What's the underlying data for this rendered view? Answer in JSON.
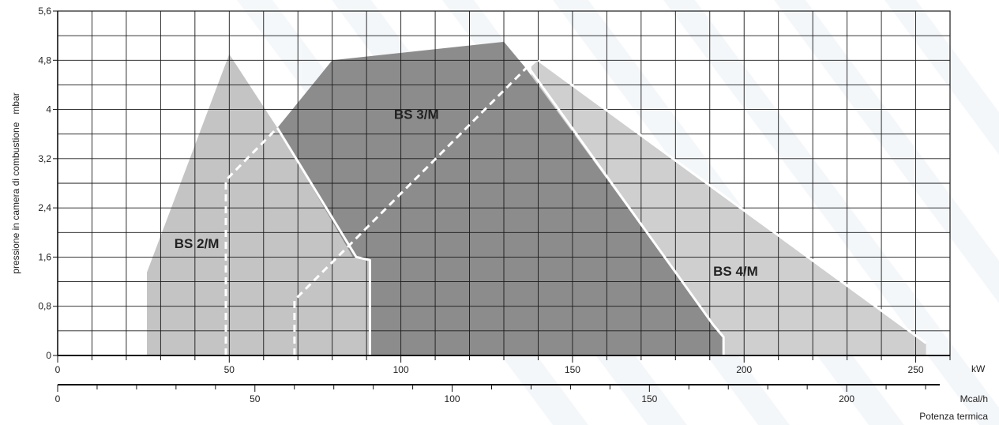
{
  "chart_data": {
    "type": "area",
    "ylabel": "pressione in camera di combustione   mbar",
    "xlabel": "Potenza termica",
    "x_unit": "kW",
    "x2_unit": "Mcal/h",
    "xlim": [
      0,
      260
    ],
    "ylim": [
      0,
      5.6
    ],
    "x2lim": [
      0,
      223.6
    ],
    "yticks": [
      "0",
      "0,8",
      "1,6",
      "2,4",
      "3,2",
      "4",
      "4,8",
      "5,6"
    ],
    "y_tick_values": [
      0,
      0.8,
      1.6,
      2.4,
      3.2,
      4.0,
      4.8,
      5.6
    ],
    "xticks": [
      "0",
      "50",
      "100",
      "150",
      "200",
      "250"
    ],
    "x_tick_values": [
      0,
      50,
      100,
      150,
      200,
      250
    ],
    "x2ticks": [
      "0",
      "50",
      "100",
      "150",
      "200"
    ],
    "x2_tick_values": [
      0,
      50,
      100,
      150,
      200
    ],
    "grid": true,
    "series": [
      {
        "name": "BS 2/M",
        "color": "#c4c4c4",
        "polygon": [
          [
            26,
            0
          ],
          [
            26,
            1.35
          ],
          [
            50,
            4.9
          ],
          [
            64,
            3.7
          ],
          [
            86,
            1.6
          ],
          [
            91,
            1.55
          ],
          [
            91,
            0
          ]
        ]
      },
      {
        "name": "BS 4/M",
        "color": "#cfcfcf",
        "polygon": [
          [
            138,
            0
          ],
          [
            138,
            4.7
          ],
          [
            140,
            4.8
          ],
          [
            253,
            0.2
          ],
          [
            253,
            0
          ]
        ]
      },
      {
        "name": "BS 3/M",
        "color": "#8c8c8c",
        "polygon": [
          [
            91,
            0
          ],
          [
            91,
            1.55
          ],
          [
            86,
            1.6
          ],
          [
            64,
            3.7
          ],
          [
            80,
            4.8
          ],
          [
            130,
            5.1
          ],
          [
            136,
            4.7
          ],
          [
            191,
            0.5
          ],
          [
            194,
            0.3
          ],
          [
            194,
            0
          ]
        ]
      }
    ],
    "boundary_lines": [
      {
        "style": "solid",
        "points": [
          [
            64,
            3.7
          ],
          [
            87,
            1.6
          ],
          [
            91,
            1.55
          ],
          [
            91,
            0
          ]
        ]
      },
      {
        "style": "solid",
        "points": [
          [
            137,
            4.7
          ],
          [
            191,
            0.5
          ],
          [
            194,
            0.3
          ],
          [
            194,
            0
          ]
        ]
      },
      {
        "style": "solid",
        "points": [
          [
            140,
            4.8
          ],
          [
            253,
            0.2
          ]
        ]
      },
      {
        "style": "dashed",
        "points": [
          [
            49,
            0
          ],
          [
            49,
            2.85
          ],
          [
            64,
            3.7
          ]
        ]
      },
      {
        "style": "dashed",
        "points": [
          [
            69,
            0
          ],
          [
            69,
            0.9
          ],
          [
            137,
            4.7
          ]
        ]
      }
    ],
    "labels": [
      {
        "text": "BS 2/M",
        "x": 34,
        "y": 1.75
      },
      {
        "text": "BS 3/M",
        "x": 98,
        "y": 3.85
      },
      {
        "text": "BS 4/M",
        "x": 191,
        "y": 1.3
      }
    ]
  }
}
